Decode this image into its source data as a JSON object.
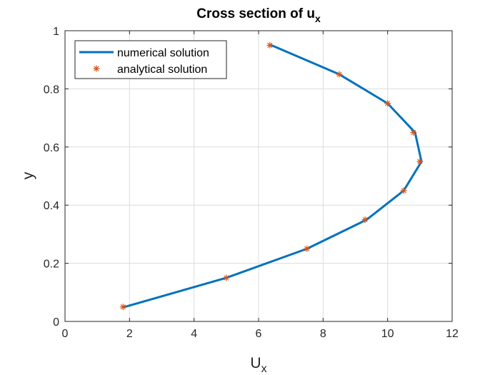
{
  "chart_data": {
    "type": "line",
    "title": {
      "text": "Cross section of u",
      "subscript": "x"
    },
    "xlabel": {
      "text": "U",
      "subscript": "x"
    },
    "ylabel": "y",
    "xlim": [
      0,
      12
    ],
    "ylim": [
      0,
      1
    ],
    "xticks": [
      "0",
      "2",
      "4",
      "6",
      "8",
      "10",
      "12"
    ],
    "yticks": [
      "0",
      "0.2",
      "0.4",
      "0.6",
      "0.8",
      "1"
    ],
    "grid": true,
    "legend_position": "top-left",
    "series": [
      {
        "name": "numerical solution",
        "style": "line",
        "color": "#0072BD",
        "x": [
          1.85,
          5.0,
          7.5,
          9.35,
          10.5,
          11.05,
          10.85,
          10.0,
          8.5,
          6.4
        ],
        "y": [
          0.05,
          0.15,
          0.25,
          0.35,
          0.45,
          0.55,
          0.65,
          0.75,
          0.85,
          0.95
        ]
      },
      {
        "name": "analytical solution",
        "style": "marker",
        "marker": "asterisk",
        "color": "#D95319",
        "x": [
          1.8,
          5.0,
          7.5,
          9.3,
          10.5,
          11.0,
          10.8,
          10.0,
          8.5,
          6.35
        ],
        "y": [
          0.05,
          0.15,
          0.25,
          0.35,
          0.45,
          0.55,
          0.65,
          0.75,
          0.85,
          0.95
        ]
      }
    ]
  }
}
